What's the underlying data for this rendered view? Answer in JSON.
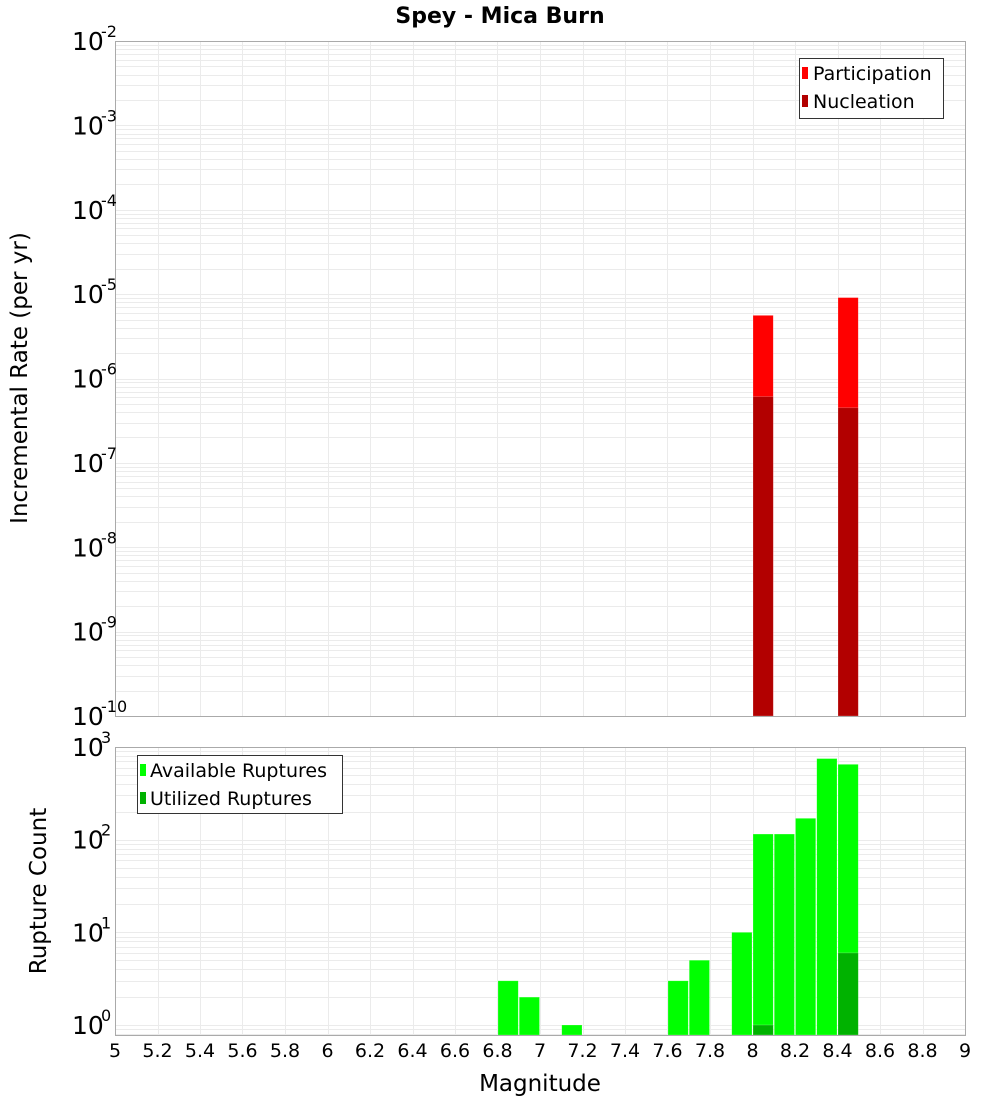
{
  "chart_data": [
    {
      "type": "bar",
      "panel": "top",
      "title": "Spey - Mica Burn",
      "xlabel": "Magnitude",
      "ylabel": "Incremental Rate (per yr)",
      "yscale": "log",
      "ylim": [
        1e-10,
        0.01
      ],
      "xlim": [
        5,
        9
      ],
      "grid": true,
      "legend_position": "upper right",
      "bar_width": 0.1,
      "series": [
        {
          "name": "Participation",
          "color": "#ff0000",
          "x": [
            8.05,
            8.45
          ],
          "values": [
            5.6e-06,
            9.1e-06
          ]
        },
        {
          "name": "Nucleation",
          "color": "#b20000",
          "x": [
            8.05,
            8.45
          ],
          "values": [
            6.1e-07,
            4.5e-07
          ]
        }
      ],
      "yticks": [
        {
          "base": "10",
          "exp": "-2",
          "value": 0.01
        },
        {
          "base": "10",
          "exp": "-3",
          "value": 0.001
        },
        {
          "base": "10",
          "exp": "-4",
          "value": 0.0001
        },
        {
          "base": "10",
          "exp": "-5",
          "value": 1e-05
        },
        {
          "base": "10",
          "exp": "-6",
          "value": 1e-06
        },
        {
          "base": "10",
          "exp": "-7",
          "value": 1e-07
        },
        {
          "base": "10",
          "exp": "-8",
          "value": 1e-08
        },
        {
          "base": "10",
          "exp": "-9",
          "value": 1e-09
        },
        {
          "base": "10",
          "exp": "-10",
          "value": 1e-10
        }
      ]
    },
    {
      "type": "bar",
      "panel": "bottom",
      "xlabel": "Magnitude",
      "ylabel": "Rupture Count",
      "yscale": "log",
      "ylim": [
        0.78,
        1000
      ],
      "xlim": [
        5,
        9
      ],
      "grid": true,
      "legend_position": "upper left",
      "bar_width": 0.1,
      "series": [
        {
          "name": "Available Ruptures",
          "color": "#00ff00",
          "x": [
            6.85,
            6.95,
            7.15,
            7.65,
            7.75,
            7.95,
            8.05,
            8.15,
            8.25,
            8.35,
            8.45
          ],
          "values": [
            3,
            2,
            1,
            3,
            5,
            10,
            115,
            115,
            170,
            750,
            650
          ]
        },
        {
          "name": "Utilized Ruptures",
          "color": "#00b200",
          "x": [
            8.05,
            8.45
          ],
          "values": [
            1,
            6
          ]
        }
      ],
      "yticks": [
        {
          "base": "10",
          "exp": "3",
          "value": 1000
        },
        {
          "base": "10",
          "exp": "2",
          "value": 100
        },
        {
          "base": "10",
          "exp": "1",
          "value": 10
        },
        {
          "base": "10",
          "exp": "0",
          "value": 1
        }
      ]
    }
  ],
  "xticks": [
    "5",
    "5.2",
    "5.4",
    "5.6",
    "5.8",
    "6",
    "6.2",
    "6.4",
    "6.6",
    "6.8",
    "7",
    "7.2",
    "7.4",
    "7.6",
    "7.8",
    "8",
    "8.2",
    "8.4",
    "8.6",
    "8.8",
    "9"
  ],
  "labels": {
    "title": "Spey - Mica Burn",
    "top_ylabel": "Incremental Rate (per yr)",
    "bottom_ylabel": "Rupture Count",
    "xlabel": "Magnitude",
    "legend_top": [
      "Participation",
      "Nucleation"
    ],
    "legend_bottom": [
      "Available Ruptures",
      "Utilized Ruptures"
    ]
  },
  "colors": {
    "participation": "#ff0000",
    "nucleation": "#b20000",
    "available": "#00ff00",
    "utilized": "#00b200",
    "grid": "#ebebeb",
    "frame": "#aaaaaa"
  }
}
